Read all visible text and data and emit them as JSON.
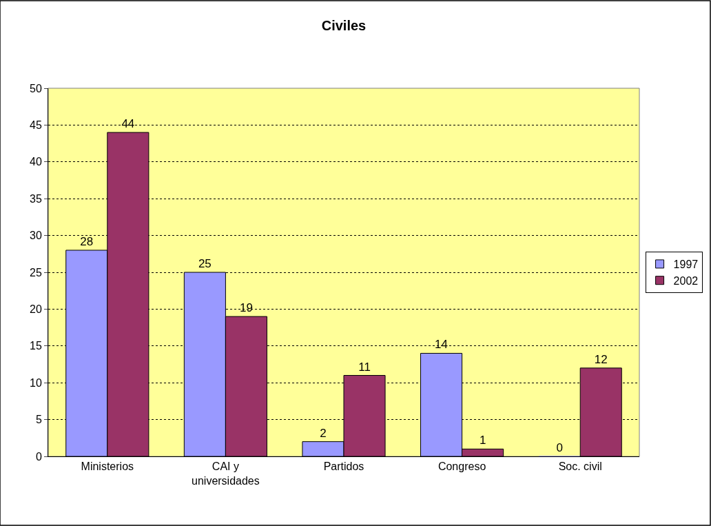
{
  "chart_data": {
    "type": "bar",
    "title": "Civiles",
    "categories": [
      "Ministerios",
      "CAI y universidades",
      "Partidos",
      "Congreso",
      "Soc. civil"
    ],
    "series": [
      {
        "name": "1997",
        "color": "#9999ff",
        "values": [
          28,
          25,
          2,
          14,
          0
        ]
      },
      {
        "name": "2002",
        "color": "#993366",
        "values": [
          44,
          19,
          11,
          1,
          12
        ]
      }
    ],
    "ylim": [
      0,
      50
    ],
    "yticks": [
      0,
      5,
      10,
      15,
      20,
      25,
      30,
      35,
      40,
      45,
      50
    ],
    "grid": "y",
    "legend": "right",
    "data_labels": true
  }
}
